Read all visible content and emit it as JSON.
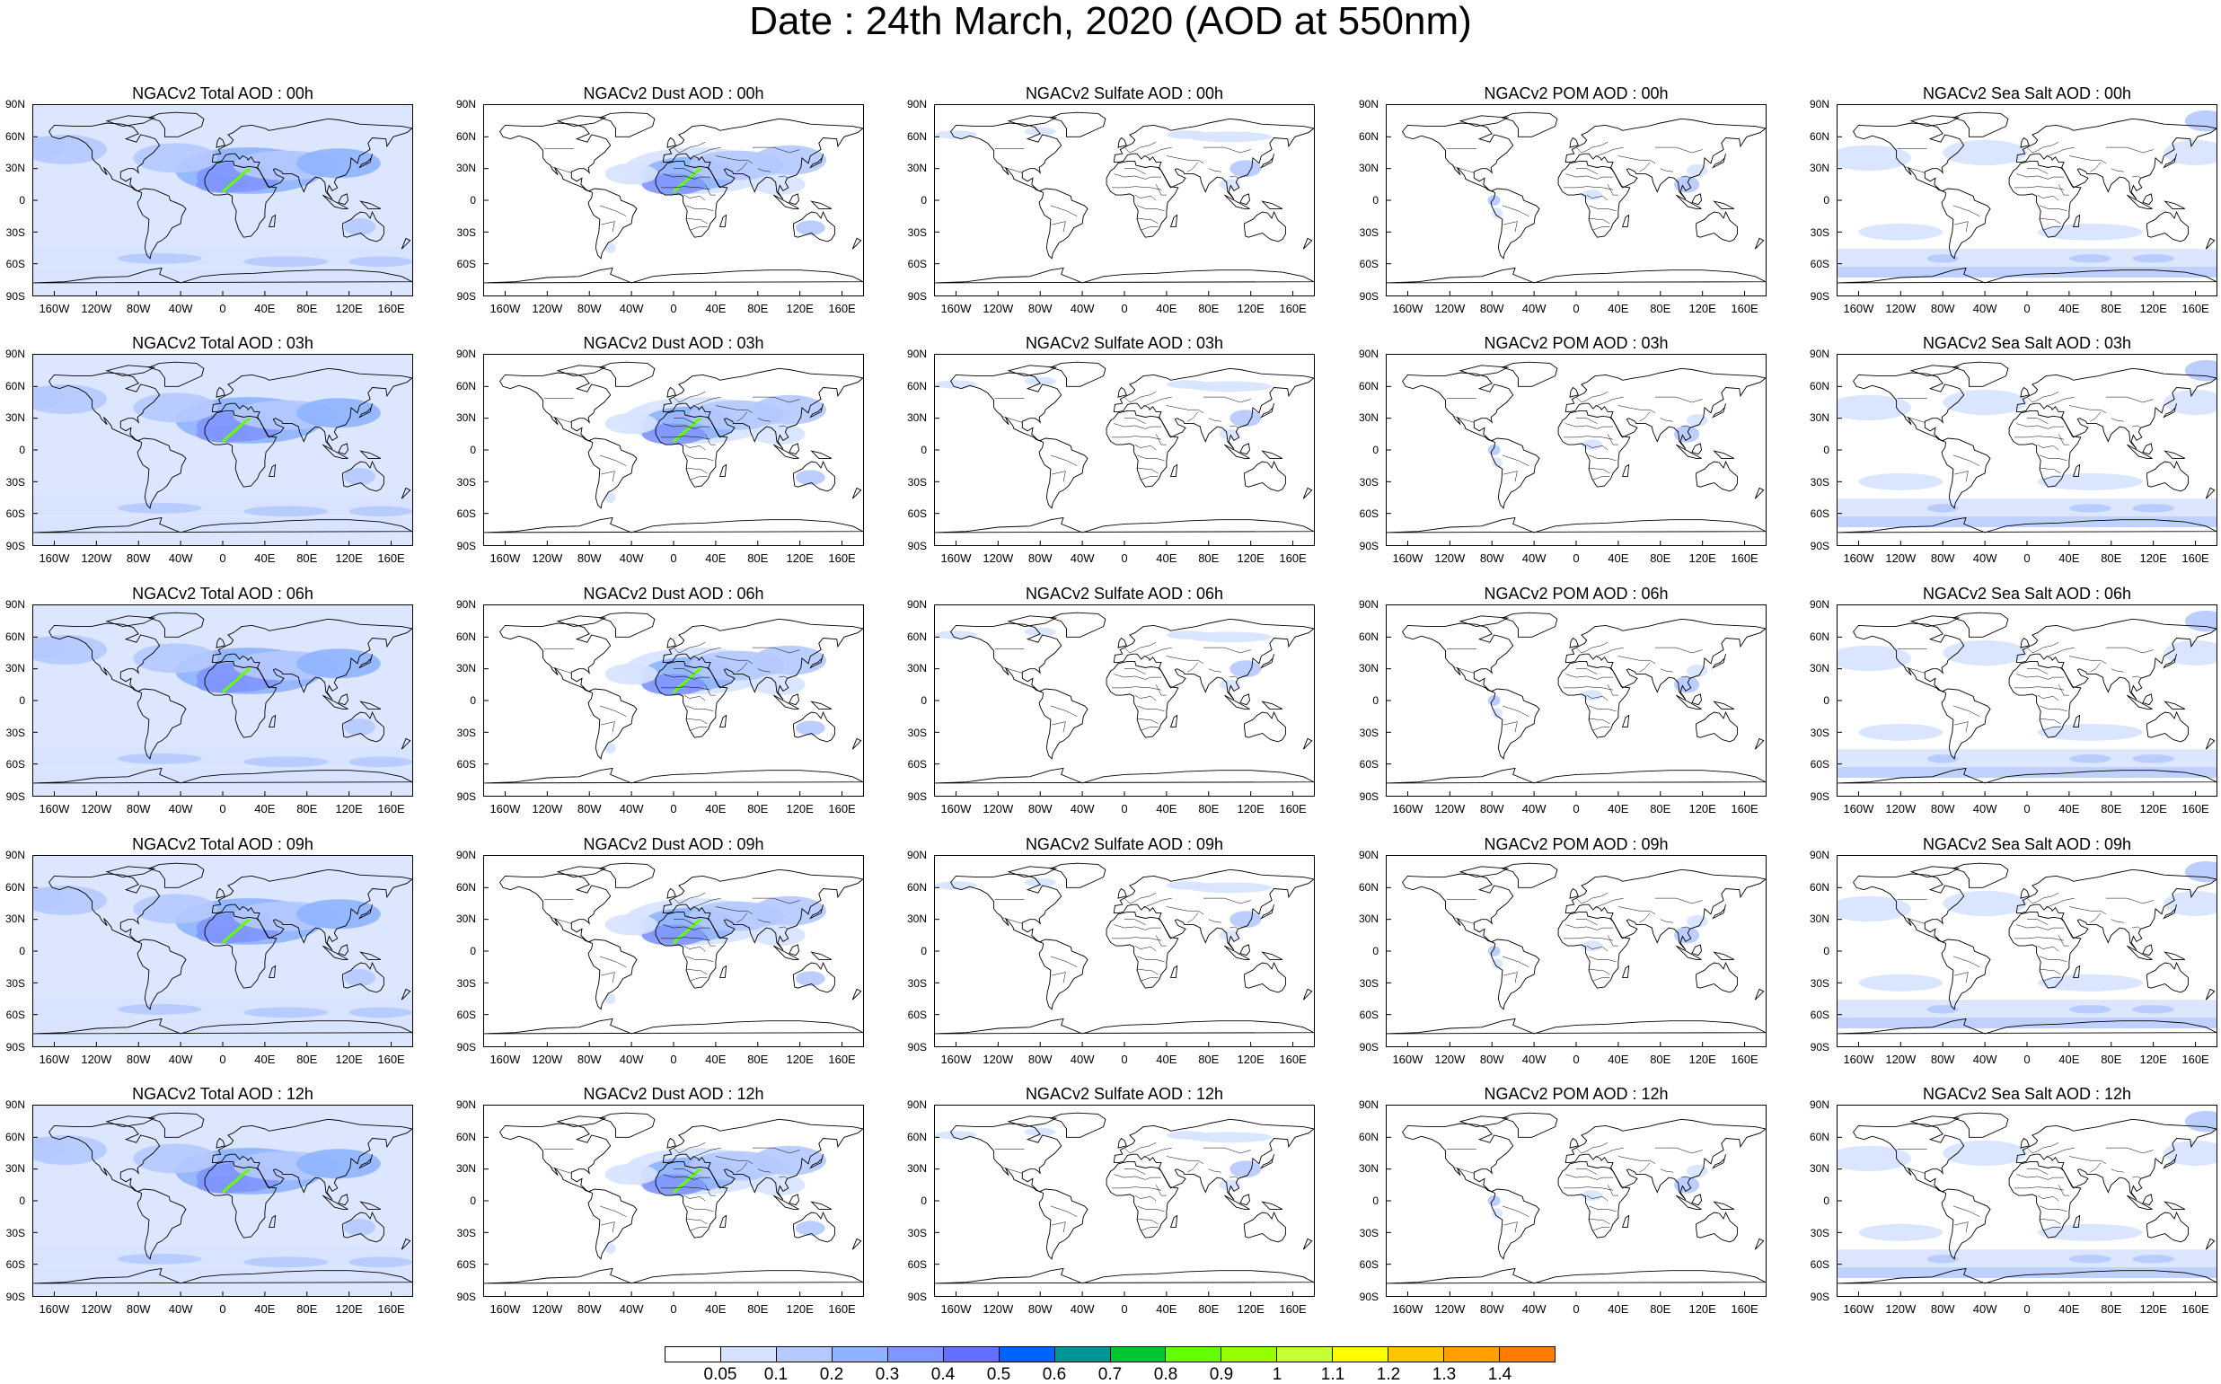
{
  "title": "Date : 24th March, 2020 (AOD at 550nm)",
  "lat_labels": [
    "90N",
    "60N",
    "30N",
    "0",
    "30S",
    "60S",
    "90S"
  ],
  "lon_labels": [
    "160W",
    "120W",
    "80W",
    "40W",
    "0",
    "40E",
    "80E",
    "120E",
    "160E"
  ],
  "panels": [
    {
      "title": "NGACv2 Total AOD : 00h",
      "species": "total",
      "hour": "00h"
    },
    {
      "title": "NGACv2 Dust AOD : 00h",
      "species": "dust",
      "hour": "00h"
    },
    {
      "title": "NGACv2 Sulfate AOD : 00h",
      "species": "sulfate",
      "hour": "00h"
    },
    {
      "title": "NGACv2 POM AOD : 00h",
      "species": "pom",
      "hour": "00h"
    },
    {
      "title": "NGACv2 Sea Salt AOD : 00h",
      "species": "seasalt",
      "hour": "00h"
    },
    {
      "title": "NGACv2 Total AOD : 03h",
      "species": "total",
      "hour": "03h"
    },
    {
      "title": "NGACv2 Dust AOD : 03h",
      "species": "dust",
      "hour": "03h"
    },
    {
      "title": "NGACv2 Sulfate AOD : 03h",
      "species": "sulfate",
      "hour": "03h"
    },
    {
      "title": "NGACv2 POM AOD : 03h",
      "species": "pom",
      "hour": "03h"
    },
    {
      "title": "NGACv2 Sea Salt AOD : 03h",
      "species": "seasalt",
      "hour": "03h"
    },
    {
      "title": "NGACv2 Total AOD : 06h",
      "species": "total",
      "hour": "06h"
    },
    {
      "title": "NGACv2 Dust AOD : 06h",
      "species": "dust",
      "hour": "06h"
    },
    {
      "title": "NGACv2 Sulfate AOD : 06h",
      "species": "sulfate",
      "hour": "06h"
    },
    {
      "title": "NGACv2 POM AOD : 06h",
      "species": "pom",
      "hour": "06h"
    },
    {
      "title": "NGACv2 Sea Salt AOD : 06h",
      "species": "seasalt",
      "hour": "06h"
    },
    {
      "title": "NGACv2 Total AOD : 09h",
      "species": "total",
      "hour": "09h"
    },
    {
      "title": "NGACv2 Dust AOD : 09h",
      "species": "dust",
      "hour": "09h"
    },
    {
      "title": "NGACv2 Sulfate AOD : 09h",
      "species": "sulfate",
      "hour": "09h"
    },
    {
      "title": "NGACv2 POM AOD : 09h",
      "species": "pom",
      "hour": "09h"
    },
    {
      "title": "NGACv2 Sea Salt  AOD : 09h",
      "species": "seasalt",
      "hour": "09h"
    },
    {
      "title": "NGACv2 Total AOD :  12h",
      "species": "total",
      "hour": "12h"
    },
    {
      "title": "NGACv2 Dust AOD : 12h",
      "species": "dust",
      "hour": "12h"
    },
    {
      "title": "NGACv2 Sulfate AOD : 12h",
      "species": "sulfate",
      "hour": "12h"
    },
    {
      "title": "NGACv2 POM  AOD : 12h",
      "species": "pom",
      "hour": "12h"
    },
    {
      "title": "NGACv2 Sea Salt AOD : 12h",
      "species": "seasalt",
      "hour": "12h"
    }
  ],
  "colorbar": {
    "levels": [
      "0.05",
      "0.1",
      "0.2",
      "0.3",
      "0.4",
      "0.5",
      "0.6",
      "0.7",
      "0.8",
      "0.9",
      "1",
      "1.1",
      "1.2",
      "1.3",
      "1.4"
    ],
    "colors": [
      "#ffffff",
      "#d6e2ff",
      "#b5c9ff",
      "#8eb2ff",
      "#7f96ff",
      "#6370ff",
      "#0063ff",
      "#009696",
      "#00c633",
      "#63ff00",
      "#96ff00",
      "#c6ff33",
      "#ffff00",
      "#ffc600",
      "#ffa000",
      "#ff7c00",
      "#ff1900"
    ]
  },
  "colors": {
    "land_outline": "#000000",
    "background": "#ffffff"
  }
}
